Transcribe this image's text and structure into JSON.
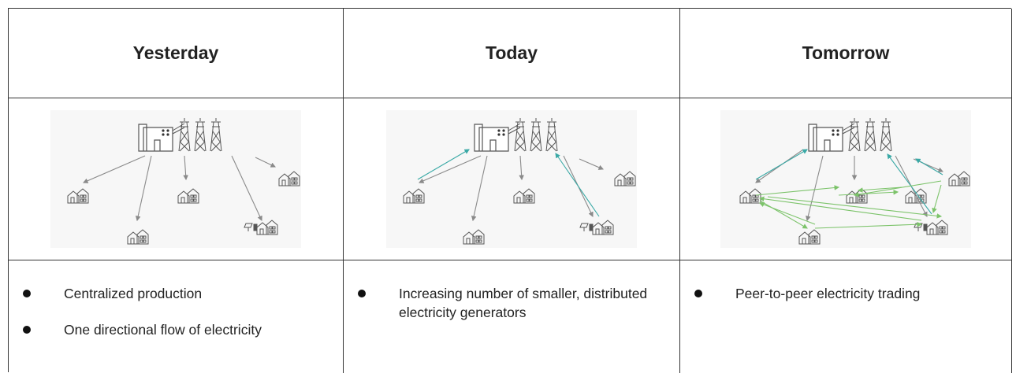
{
  "columns": [
    {
      "header": "Yesterday",
      "bullets": [
        "Centralized production",
        "One directional flow of electricity"
      ]
    },
    {
      "header": "Today",
      "bullets": [
        "Increasing number of smaller, distributed electricity generators"
      ]
    },
    {
      "header": "Tomorrow",
      "bullets": [
        "Peer-to-peer electricity trading"
      ]
    }
  ]
}
